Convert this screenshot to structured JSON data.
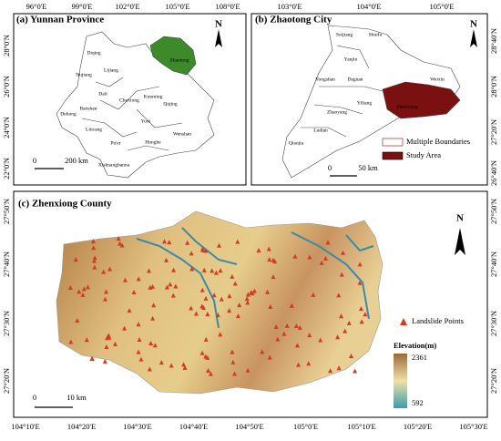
{
  "panels": [
    {
      "title": "(a) Yunnan Province",
      "lon_labels": [
        "96°0'E",
        "99°0'E",
        "102°0'E",
        "105°0'E",
        "108°0'E"
      ],
      "lat_labels": [
        "28°0'N",
        "26°0'N",
        "24°0'N",
        "22°0'N"
      ],
      "places": [
        "Diqing",
        "Nujiang",
        "Lijiang",
        "Dali",
        "Baoshan",
        "Dehong",
        "Lincang",
        "Chuxiong",
        "Kunming",
        "Qujing",
        "Yuxi",
        "Pu'er",
        "Honghe",
        "Wenshan",
        "Xishuangbanna",
        "Zhaotong"
      ],
      "scale": [
        "0",
        "200 km"
      ],
      "north": "N"
    },
    {
      "title": "(b) Zhaotong City",
      "lon_labels": [
        "103°0'E",
        "104°0'E",
        "105°0'E"
      ],
      "lat_labels": [
        "28°40'N",
        "28°0'N",
        "27°20'N",
        "26°40'N"
      ],
      "places": [
        "Suijiang",
        "Shuifu",
        "Yanjin",
        "Yongshan",
        "Daguan",
        "Weixin",
        "Zhenxiong",
        "Zhaoyang",
        "Yiliang",
        "Ludian",
        "Qiaojia"
      ],
      "legend": [
        "Multiple Boundaries",
        "Study Area"
      ],
      "scale": [
        "0",
        "50 km"
      ],
      "north": "N"
    },
    {
      "title": "(c) Zhenxiong County",
      "lon_labels": [
        "104°10'E",
        "104°20'E",
        "104°30'E",
        "104°40'E",
        "104°50'E",
        "105°0'E",
        "105°10'E",
        "105°20'E",
        "105°30'E"
      ],
      "lat_labels": [
        "27°50'N",
        "27°40'N",
        "27°30'N",
        "27°20'N"
      ],
      "legend": {
        "points": "Landslide Points",
        "elevation": "Elevation(m)",
        "max": "2361",
        "min": "592"
      },
      "scale": [
        "0",
        "10 km"
      ],
      "north": "N"
    }
  ]
}
